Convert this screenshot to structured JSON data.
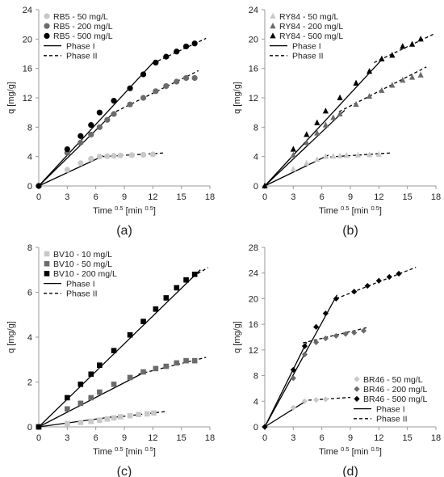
{
  "chart_data": [
    {
      "type": "scatter",
      "panel_label": "(a)",
      "xlabel": "Time",
      "xlabel_sup": "0.5",
      "xlabel_unit": "[min",
      "xlabel_unit_sup": "0.5",
      "xlabel_close": "]",
      "ylabel": "q [mg/g]",
      "xlim": [
        0,
        18
      ],
      "ylim": [
        0,
        24
      ],
      "xticks": [
        0,
        3,
        6,
        9,
        12,
        15,
        18
      ],
      "yticks": [
        0,
        4,
        8,
        12,
        16,
        20,
        24
      ],
      "legend_position": "top-left",
      "series": [
        {
          "name": "RB5 - 50 mg/L",
          "marker": "circle",
          "color": "#c8c8c8",
          "x": [
            0,
            3.0,
            4.4,
            5.5,
            6.4,
            7.2,
            7.9,
            8.6,
            9.8,
            11.0,
            12.0
          ],
          "y": [
            0,
            2.2,
            3.1,
            3.7,
            4.0,
            4.05,
            4.1,
            4.15,
            4.2,
            4.25,
            4.3
          ]
        },
        {
          "name": "RB5 - 200 mg/L",
          "marker": "circle",
          "color": "#6b6b6b",
          "x": [
            0,
            3.0,
            4.4,
            5.5,
            6.4,
            7.2,
            7.9,
            9.6,
            11.0,
            12.3,
            13.4,
            14.5,
            15.5,
            16.4
          ],
          "y": [
            0,
            4.5,
            5.9,
            7.0,
            8.0,
            9.0,
            9.8,
            11.1,
            12.0,
            12.9,
            13.6,
            14.2,
            14.7,
            14.7
          ]
        },
        {
          "name": "RB5 - 500 mg/L",
          "marker": "circle",
          "color": "#000000",
          "x": [
            0,
            3.0,
            4.4,
            5.5,
            6.4,
            7.9,
            9.6,
            11.0,
            12.3,
            13.4,
            14.5,
            15.5,
            16.4
          ],
          "y": [
            0,
            5.0,
            6.8,
            8.3,
            10.0,
            11.6,
            13.3,
            15.2,
            16.8,
            17.6,
            18.3,
            19.0,
            19.4
          ]
        },
        {
          "name": "Phase  I",
          "kind": "fit",
          "dash": "solid",
          "color": "#000000",
          "lines": [
            [
              [
                0,
                0
              ],
              [
                6.8,
                4.1
              ]
            ],
            [
              [
                0,
                0
              ],
              [
                7.9,
                10.0
              ]
            ],
            [
              [
                0,
                0
              ],
              [
                12.1,
                16.9
              ]
            ]
          ]
        },
        {
          "name": "Phase  II",
          "kind": "fit",
          "dash": "dashed",
          "color": "#000000",
          "lines": [
            [
              [
                6.8,
                4.0
              ],
              [
                13.3,
                4.5
              ]
            ],
            [
              [
                7.6,
                9.8
              ],
              [
                16.8,
                15.7
              ]
            ],
            [
              [
                12.0,
                16.7
              ],
              [
                17.6,
                20.1
              ]
            ]
          ]
        }
      ]
    },
    {
      "type": "scatter",
      "panel_label": "(b)",
      "xlabel": "Time",
      "xlabel_sup": "0.5",
      "xlabel_unit": "[min",
      "xlabel_unit_sup": "0.5",
      "xlabel_close": "]",
      "ylabel": "q [mg/g]",
      "xlim": [
        0,
        18
      ],
      "ylim": [
        0,
        24
      ],
      "xticks": [
        0,
        3,
        6,
        9,
        12,
        15,
        18
      ],
      "yticks": [
        0,
        4,
        8,
        12,
        16,
        20,
        24
      ],
      "legend_position": "top-left",
      "series": [
        {
          "name": "RY84 - 50 mg/L",
          "marker": "triangle",
          "color": "#c8c8c8",
          "x": [
            0,
            3.0,
            4.4,
            5.5,
            6.4,
            7.2,
            7.9,
            8.6,
            9.8,
            11.0,
            12.0
          ],
          "y": [
            0,
            2.3,
            3.1,
            3.6,
            4.0,
            4.05,
            4.1,
            4.15,
            4.2,
            4.25,
            4.3
          ]
        },
        {
          "name": "RY84 - 200 mg/L",
          "marker": "triangle",
          "color": "#6b6b6b",
          "x": [
            0,
            3.0,
            4.4,
            5.5,
            6.4,
            7.2,
            7.9,
            9.6,
            11.0,
            12.3,
            13.4,
            14.5,
            15.5,
            16.4
          ],
          "y": [
            0,
            4.2,
            5.9,
            7.2,
            8.3,
            9.3,
            9.8,
            11.1,
            12.2,
            13.0,
            13.7,
            14.4,
            14.8,
            15.1
          ]
        },
        {
          "name": "RY84 - 500 mg/L",
          "marker": "triangle",
          "color": "#000000",
          "x": [
            0,
            3.0,
            4.4,
            5.5,
            6.4,
            7.9,
            9.6,
            11.0,
            12.3,
            13.4,
            14.5,
            15.5,
            16.4
          ],
          "y": [
            0,
            5.0,
            7.0,
            8.6,
            10.2,
            12.0,
            14.0,
            15.6,
            17.3,
            17.8,
            19.0,
            19.3,
            20.0
          ]
        },
        {
          "name": "Phase  I",
          "kind": "fit",
          "dash": "solid",
          "color": "#000000",
          "lines": [
            [
              [
                0,
                0
              ],
              [
                6.7,
                4.2
              ]
            ],
            [
              [
                0,
                0
              ],
              [
                8.4,
                10.3
              ]
            ],
            [
              [
                0,
                0
              ],
              [
                12.3,
                17.2
              ]
            ]
          ]
        },
        {
          "name": "Phase  II",
          "kind": "fit",
          "dash": "dashed",
          "color": "#000000",
          "lines": [
            [
              [
                6.3,
                3.9
              ],
              [
                13.3,
                4.5
              ]
            ],
            [
              [
                7.8,
                10.1
              ],
              [
                17.0,
                16.2
              ]
            ],
            [
              [
                11.5,
                16.8
              ],
              [
                17.8,
                20.7
              ]
            ]
          ]
        }
      ]
    },
    {
      "type": "scatter",
      "panel_label": "(c)",
      "xlabel": "Time",
      "xlabel_sup": "0.5",
      "xlabel_unit": "[min",
      "xlabel_unit_sup": "0.5",
      "xlabel_close": "]",
      "ylabel": "q [mg/g]",
      "xlim": [
        0,
        18
      ],
      "ylim": [
        0,
        8
      ],
      "xticks": [
        0,
        3,
        6,
        9,
        12,
        15,
        18
      ],
      "yticks": [
        0,
        2,
        4,
        6,
        8
      ],
      "legend_position": "top-left",
      "series": [
        {
          "name": "BV10 - 10 mg/L",
          "marker": "square",
          "color": "#c8c8c8",
          "x": [
            0,
            3.0,
            4.4,
            5.5,
            6.4,
            7.2,
            7.9,
            8.6,
            9.6,
            10.5,
            11.4,
            12.1
          ],
          "y": [
            0,
            0.15,
            0.2,
            0.25,
            0.3,
            0.35,
            0.4,
            0.45,
            0.5,
            0.55,
            0.58,
            0.62
          ]
        },
        {
          "name": "BV10 - 50 mg/L",
          "marker": "square",
          "color": "#6b6b6b",
          "x": [
            0,
            3.0,
            4.4,
            5.5,
            6.4,
            7.9,
            9.6,
            11.0,
            12.3,
            13.4,
            14.5,
            15.5,
            16.4
          ],
          "y": [
            0,
            0.8,
            1.05,
            1.3,
            1.55,
            1.9,
            2.2,
            2.45,
            2.6,
            2.7,
            2.85,
            2.95,
            2.95
          ]
        },
        {
          "name": "BV10 - 200 mg/L",
          "marker": "square",
          "color": "#000000",
          "x": [
            0,
            3.0,
            4.4,
            5.5,
            6.4,
            7.9,
            9.6,
            11.0,
            12.3,
            13.4,
            14.5,
            15.5,
            16.4
          ],
          "y": [
            0,
            1.3,
            1.9,
            2.35,
            2.75,
            3.4,
            4.1,
            4.7,
            5.25,
            5.75,
            6.2,
            6.55,
            6.8
          ]
        },
        {
          "name": "Phase  I",
          "kind": "fit",
          "dash": "solid",
          "color": "#000000",
          "lines": [
            [
              [
                0,
                0
              ],
              [
                7.8,
                0.45
              ]
            ],
            [
              [
                0,
                0
              ],
              [
                11.2,
                2.45
              ]
            ],
            [
              [
                0,
                0
              ],
              [
                17.0,
                7.0
              ]
            ]
          ]
        },
        {
          "name": "Phase  II",
          "kind": "fit",
          "dash": "dashed",
          "color": "#000000",
          "lines": [
            [
              [
                7.0,
                0.38
              ],
              [
                13.3,
                0.68
              ]
            ],
            [
              [
                10.5,
                2.35
              ],
              [
                17.6,
                3.1
              ]
            ],
            [
              [
                16.2,
                6.7
              ],
              [
                17.8,
                7.1
              ]
            ]
          ]
        }
      ]
    },
    {
      "type": "scatter",
      "panel_label": "(d)",
      "xlabel": "Time",
      "xlabel_sup": "0.5",
      "xlabel_unit": "[min",
      "xlabel_unit_sup": "0.5",
      "xlabel_close": "]",
      "ylabel": "q [mg/g]",
      "xlim": [
        0,
        18
      ],
      "ylim": [
        0,
        28
      ],
      "xticks": [
        0,
        3,
        6,
        9,
        12,
        15,
        18
      ],
      "yticks": [
        0,
        4,
        8,
        12,
        16,
        20,
        24,
        28
      ],
      "legend_position": "bottom-right",
      "series": [
        {
          "name": "BR46 - 50 mg/L",
          "marker": "diamond",
          "color": "#c8c8c8",
          "x": [
            0,
            3.0,
            4.2,
            5.4,
            6.4
          ],
          "y": [
            0,
            3.0,
            4.0,
            4.2,
            4.3
          ]
        },
        {
          "name": "BR46 - 200 mg/L",
          "marker": "diamond",
          "color": "#6b6b6b",
          "x": [
            0,
            3.0,
            4.2,
            5.4,
            6.4,
            7.5,
            8.5,
            9.4,
            10.4
          ],
          "y": [
            0,
            7.6,
            11.3,
            13.2,
            13.8,
            14.2,
            14.5,
            14.7,
            15.0
          ]
        },
        {
          "name": "BR46 - 500 mg/L",
          "marker": "diamond",
          "color": "#000000",
          "x": [
            0,
            3.0,
            4.2,
            5.4,
            6.4,
            7.5,
            9.4,
            10.8,
            12.0,
            13.1,
            14.1
          ],
          "y": [
            0,
            8.9,
            12.6,
            15.6,
            17.7,
            20.0,
            21.1,
            22.0,
            22.8,
            23.4,
            23.9
          ]
        },
        {
          "name": "Phase  I",
          "kind": "fit",
          "dash": "solid",
          "color": "#000000",
          "lines": [
            [
              [
                0,
                0
              ],
              [
                4.3,
                4.0
              ]
            ],
            [
              [
                0,
                0
              ],
              [
                4.4,
                13.2
              ]
            ],
            [
              [
                0,
                0
              ],
              [
                7.6,
                20.6
              ]
            ]
          ]
        },
        {
          "name": "Phase  II",
          "kind": "fit",
          "dash": "dashed",
          "color": "#000000",
          "lines": [
            [
              [
                4.0,
                4.1
              ],
              [
                9.0,
                4.6
              ]
            ],
            [
              [
                4.0,
                13.1
              ],
              [
                10.8,
                15.5
              ]
            ],
            [
              [
                7.5,
                20.0
              ],
              [
                15.9,
                24.9
              ]
            ]
          ]
        }
      ]
    }
  ]
}
